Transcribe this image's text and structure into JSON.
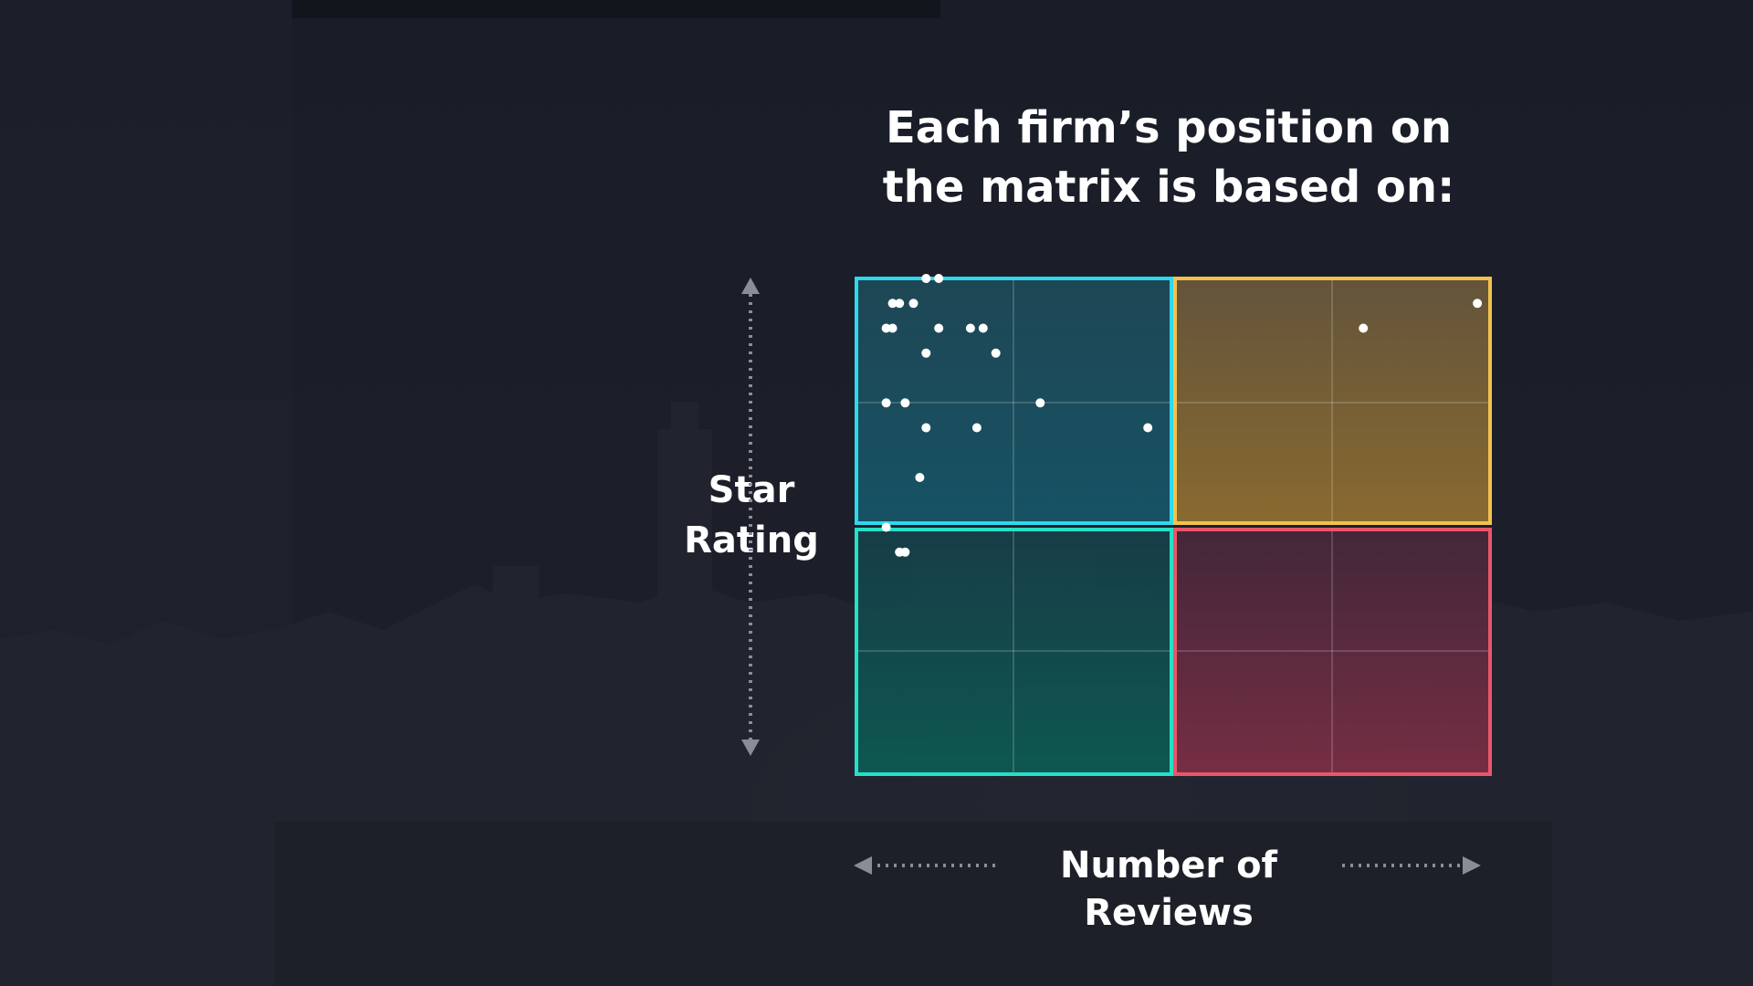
{
  "chart_data": {
    "type": "scatter",
    "title": "Each firm’s position on the matrix is based on:",
    "title_lines": [
      "Each firm’s position on",
      "the matrix is based on:"
    ],
    "xlabel": "Number of Reviews",
    "ylabel": "Star Rating",
    "ylabel_lines": [
      "Star",
      "Rating"
    ],
    "xlim": [
      0,
      1
    ],
    "ylim": [
      0,
      1
    ],
    "grid": true,
    "quadrants": [
      {
        "name": "top-left",
        "color": "#2fd8ec"
      },
      {
        "name": "top-right",
        "color": "#f2c14e"
      },
      {
        "name": "bottom-left",
        "color": "#26e0c6"
      },
      {
        "name": "bottom-right",
        "color": "#e9566b"
      }
    ],
    "points": [
      {
        "x": 0.11,
        "y": 1.0
      },
      {
        "x": 0.13,
        "y": 1.0
      },
      {
        "x": 0.057,
        "y": 0.95
      },
      {
        "x": 0.068,
        "y": 0.95
      },
      {
        "x": 0.09,
        "y": 0.95
      },
      {
        "x": 0.047,
        "y": 0.9
      },
      {
        "x": 0.057,
        "y": 0.9
      },
      {
        "x": 0.13,
        "y": 0.9
      },
      {
        "x": 0.18,
        "y": 0.9
      },
      {
        "x": 0.2,
        "y": 0.9
      },
      {
        "x": 0.11,
        "y": 0.85
      },
      {
        "x": 0.22,
        "y": 0.85
      },
      {
        "x": 0.047,
        "y": 0.75
      },
      {
        "x": 0.077,
        "y": 0.75
      },
      {
        "x": 0.29,
        "y": 0.75
      },
      {
        "x": 0.11,
        "y": 0.7
      },
      {
        "x": 0.19,
        "y": 0.7
      },
      {
        "x": 0.46,
        "y": 0.7
      },
      {
        "x": 0.1,
        "y": 0.6
      },
      {
        "x": 0.047,
        "y": 0.5
      },
      {
        "x": 0.068,
        "y": 0.45
      },
      {
        "x": 0.077,
        "y": 0.45
      },
      {
        "x": 0.8,
        "y": 0.9
      },
      {
        "x": 0.98,
        "y": 0.95
      }
    ]
  }
}
